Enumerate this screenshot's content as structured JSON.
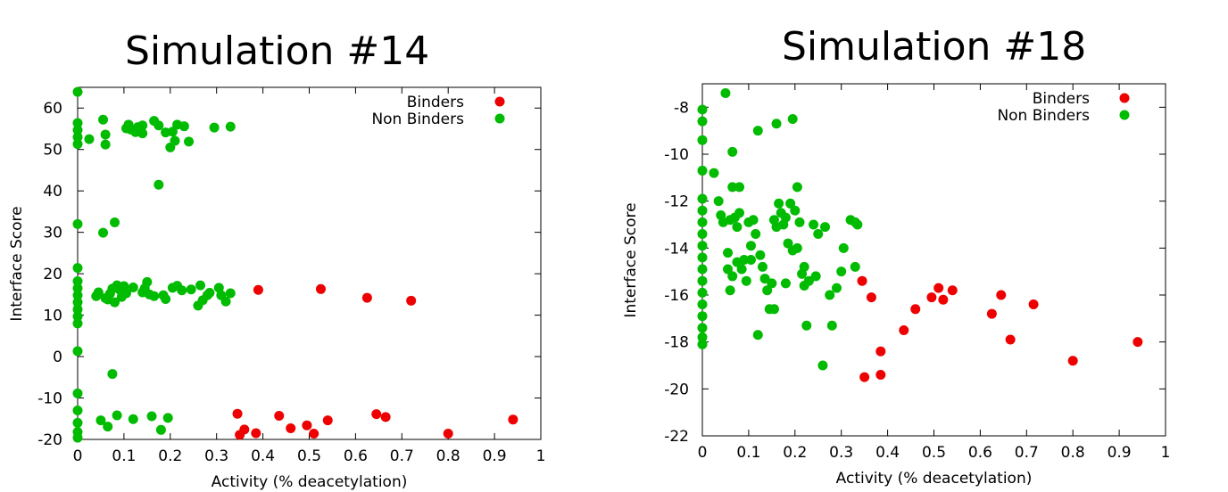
{
  "chart_data": [
    {
      "type": "scatter",
      "title": "Simulation #14",
      "xlabel": "Activity (% deacetylation)",
      "ylabel": "Interface Score",
      "xlim": [
        0,
        1
      ],
      "ylim": [
        -20,
        65
      ],
      "xticks": [
        0,
        0.1,
        0.2,
        0.3,
        0.4,
        0.5,
        0.6,
        0.7,
        0.8,
        0.9,
        1
      ],
      "xtick_labels": [
        "0",
        "0.1",
        "0.2",
        "0.3",
        "0.4",
        "0.5",
        "0.6",
        "0.7",
        "0.8",
        "0.9",
        "1"
      ],
      "yticks": [
        -20,
        -10,
        0,
        10,
        20,
        30,
        40,
        50,
        60
      ],
      "ytick_labels": [
        "-20",
        "-10",
        "0",
        "10",
        "20",
        "30",
        "40",
        "50",
        "60"
      ],
      "grid": false,
      "legend_position": "top-right",
      "series": [
        {
          "name": "Binders",
          "color": "#ee0000",
          "points": [
            [
              0.39,
              16.1
            ],
            [
              0.525,
              16.3
            ],
            [
              0.625,
              14.2
            ],
            [
              0.72,
              13.5
            ],
            [
              0.345,
              -13.8
            ],
            [
              0.35,
              -18.9
            ],
            [
              0.36,
              -17.6
            ],
            [
              0.385,
              -18.5
            ],
            [
              0.435,
              -14.3
            ],
            [
              0.46,
              -17.3
            ],
            [
              0.495,
              -16.6
            ],
            [
              0.51,
              -18.6
            ],
            [
              0.54,
              -15.4
            ],
            [
              0.645,
              -13.9
            ],
            [
              0.665,
              -14.6
            ],
            [
              0.8,
              -18.6
            ],
            [
              0.94,
              -15.2
            ]
          ]
        },
        {
          "name": "Non Binders",
          "color": "#00bb00",
          "points": [
            [
              0,
              63.9
            ],
            [
              0,
              56.4
            ],
            [
              0,
              54.7
            ],
            [
              0,
              53
            ],
            [
              0,
              51.3
            ],
            [
              0,
              32
            ],
            [
              0,
              21.4
            ],
            [
              0,
              18.2
            ],
            [
              0,
              16.5
            ],
            [
              0,
              14.8
            ],
            [
              0,
              13.1
            ],
            [
              0,
              11.4
            ],
            [
              0,
              9.7
            ],
            [
              0,
              8
            ],
            [
              0,
              1.3
            ],
            [
              0,
              -8.9
            ],
            [
              0,
              -13
            ],
            [
              0,
              -16
            ],
            [
              0,
              -18.2
            ],
            [
              0,
              -19.6
            ],
            [
              0.025,
              52.5
            ],
            [
              0.055,
              57.2
            ],
            [
              0.06,
              53.6
            ],
            [
              0.06,
              51.2
            ],
            [
              0.105,
              55.1
            ],
            [
              0.11,
              56
            ],
            [
              0.115,
              54.8
            ],
            [
              0.125,
              54.2
            ],
            [
              0.13,
              55.4
            ],
            [
              0.14,
              55.8
            ],
            [
              0.14,
              53.9
            ],
            [
              0.165,
              56.9
            ],
            [
              0.175,
              55.8
            ],
            [
              0.19,
              54.1
            ],
            [
              0.2,
              50.5
            ],
            [
              0.205,
              54.3
            ],
            [
              0.21,
              52.1
            ],
            [
              0.215,
              56
            ],
            [
              0.23,
              55.6
            ],
            [
              0.24,
              51.9
            ],
            [
              0.295,
              55.3
            ],
            [
              0.33,
              55.5
            ],
            [
              0.175,
              41.5
            ],
            [
              0.055,
              29.9
            ],
            [
              0.08,
              32.4
            ],
            [
              0.04,
              14.6
            ],
            [
              0.045,
              15.5
            ],
            [
              0.06,
              14.1
            ],
            [
              0.065,
              13.8
            ],
            [
              0.07,
              15.2
            ],
            [
              0.075,
              16.4
            ],
            [
              0.08,
              13.1
            ],
            [
              0.085,
              17.2
            ],
            [
              0.09,
              16.2
            ],
            [
              0.095,
              14.4
            ],
            [
              0.1,
              17
            ],
            [
              0.105,
              15.3
            ],
            [
              0.12,
              16.7
            ],
            [
              0.14,
              15.5
            ],
            [
              0.145,
              16.5
            ],
            [
              0.15,
              18
            ],
            [
              0.155,
              15
            ],
            [
              0.165,
              14.6
            ],
            [
              0.185,
              14.8
            ],
            [
              0.19,
              13.9
            ],
            [
              0.205,
              16.6
            ],
            [
              0.215,
              17.1
            ],
            [
              0.225,
              16
            ],
            [
              0.245,
              16.2
            ],
            [
              0.26,
              12.3
            ],
            [
              0.265,
              17.2
            ],
            [
              0.27,
              13.6
            ],
            [
              0.28,
              14.8
            ],
            [
              0.285,
              15.4
            ],
            [
              0.305,
              16.6
            ],
            [
              0.31,
              14.8
            ],
            [
              0.32,
              13.3
            ],
            [
              0.33,
              15.3
            ],
            [
              0.075,
              -4.2
            ],
            [
              0.05,
              -15.4
            ],
            [
              0.065,
              -16.9
            ],
            [
              0.085,
              -14.2
            ],
            [
              0.12,
              -15.1
            ],
            [
              0.16,
              -14.4
            ],
            [
              0.18,
              -17.7
            ],
            [
              0.195,
              -14.8
            ]
          ]
        }
      ]
    },
    {
      "type": "scatter",
      "title": "Simulation #18",
      "xlabel": "Activity (% deacetylation)",
      "ylabel": "Interface Score",
      "xlim": [
        0,
        1
      ],
      "ylim": [
        -22,
        -7
      ],
      "xticks": [
        0,
        0.1,
        0.2,
        0.3,
        0.4,
        0.5,
        0.6,
        0.7,
        0.8,
        0.9,
        1
      ],
      "xtick_labels": [
        "0",
        "0.1",
        "0.2",
        "0.3",
        "0.4",
        "0.5",
        "0.6",
        "0.7",
        "0.8",
        "0.9",
        "1"
      ],
      "yticks": [
        -22,
        -20,
        -18,
        -16,
        -14,
        -12,
        -10,
        -8
      ],
      "ytick_labels": [
        "-22",
        "-20",
        "-18",
        "-16",
        "-14",
        "-12",
        "-10",
        "-8"
      ],
      "grid": false,
      "legend_position": "top-right",
      "series": [
        {
          "name": "Binders",
          "color": "#ee0000",
          "points": [
            [
              0.345,
              -15.4
            ],
            [
              0.35,
              -19.5
            ],
            [
              0.365,
              -16.1
            ],
            [
              0.385,
              -18.4
            ],
            [
              0.385,
              -19.4
            ],
            [
              0.435,
              -17.5
            ],
            [
              0.46,
              -16.6
            ],
            [
              0.495,
              -16.1
            ],
            [
              0.51,
              -15.7
            ],
            [
              0.52,
              -16.2
            ],
            [
              0.54,
              -15.8
            ],
            [
              0.625,
              -16.8
            ],
            [
              0.645,
              -16
            ],
            [
              0.665,
              -17.9
            ],
            [
              0.715,
              -16.4
            ],
            [
              0.8,
              -18.8
            ],
            [
              0.94,
              -18
            ]
          ]
        },
        {
          "name": "Non Binders",
          "color": "#00bb00",
          "points": [
            [
              0,
              -8.1
            ],
            [
              0,
              -8.6
            ],
            [
              0,
              -9.4
            ],
            [
              0,
              -10.7
            ],
            [
              0,
              -11.9
            ],
            [
              0,
              -12.4
            ],
            [
              0,
              -12.9
            ],
            [
              0,
              -13.4
            ],
            [
              0,
              -13.9
            ],
            [
              0,
              -14.4
            ],
            [
              0,
              -14.9
            ],
            [
              0,
              -15.4
            ],
            [
              0,
              -15.9
            ],
            [
              0,
              -16.4
            ],
            [
              0,
              -16.9
            ],
            [
              0,
              -17.4
            ],
            [
              0,
              -17.8
            ],
            [
              0,
              -18.1
            ],
            [
              0.025,
              -10.8
            ],
            [
              0.035,
              -12
            ],
            [
              0.04,
              -12.6
            ],
            [
              0.045,
              -12.9
            ],
            [
              0.05,
              -7.4
            ],
            [
              0.055,
              -14.2
            ],
            [
              0.055,
              -14.9
            ],
            [
              0.06,
              -12.8
            ],
            [
              0.06,
              -15.8
            ],
            [
              0.065,
              -11.4
            ],
            [
              0.065,
              -15.2
            ],
            [
              0.065,
              -9.9
            ],
            [
              0.07,
              -12.7
            ],
            [
              0.075,
              -13.1
            ],
            [
              0.075,
              -14.6
            ],
            [
              0.08,
              -11.4
            ],
            [
              0.08,
              -12.5
            ],
            [
              0.085,
              -14.9
            ],
            [
              0.09,
              -14.5
            ],
            [
              0.095,
              -15.4
            ],
            [
              0.1,
              -12.9
            ],
            [
              0.105,
              -14.5
            ],
            [
              0.105,
              -13.9
            ],
            [
              0.11,
              -12.8
            ],
            [
              0.115,
              -13.4
            ],
            [
              0.12,
              -9
            ],
            [
              0.12,
              -17.7
            ],
            [
              0.125,
              -14.3
            ],
            [
              0.13,
              -14.8
            ],
            [
              0.135,
              -15.3
            ],
            [
              0.14,
              -15.8
            ],
            [
              0.145,
              -16.6
            ],
            [
              0.15,
              -15.5
            ],
            [
              0.155,
              -12.8
            ],
            [
              0.155,
              -16.6
            ],
            [
              0.16,
              -8.7
            ],
            [
              0.16,
              -13.1
            ],
            [
              0.165,
              -12.1
            ],
            [
              0.17,
              -12.5
            ],
            [
              0.175,
              -13
            ],
            [
              0.18,
              -12.7
            ],
            [
              0.18,
              -15.5
            ],
            [
              0.185,
              -13.8
            ],
            [
              0.19,
              -12.1
            ],
            [
              0.195,
              -8.5
            ],
            [
              0.195,
              -14.1
            ],
            [
              0.2,
              -12.4
            ],
            [
              0.205,
              -11.4
            ],
            [
              0.205,
              -14
            ],
            [
              0.21,
              -12.9
            ],
            [
              0.215,
              -15.1
            ],
            [
              0.22,
              -14.8
            ],
            [
              0.22,
              -15.6
            ],
            [
              0.225,
              -17.3
            ],
            [
              0.23,
              -15.4
            ],
            [
              0.24,
              -13
            ],
            [
              0.245,
              -15.2
            ],
            [
              0.25,
              -13.4
            ],
            [
              0.26,
              -19
            ],
            [
              0.265,
              -13.1
            ],
            [
              0.275,
              -16
            ],
            [
              0.28,
              -17.3
            ],
            [
              0.29,
              -15.7
            ],
            [
              0.3,
              -15
            ],
            [
              0.305,
              -14
            ],
            [
              0.32,
              -12.8
            ],
            [
              0.33,
              -14.8
            ],
            [
              0.33,
              -12.9
            ],
            [
              0.335,
              -13
            ]
          ]
        }
      ]
    }
  ]
}
